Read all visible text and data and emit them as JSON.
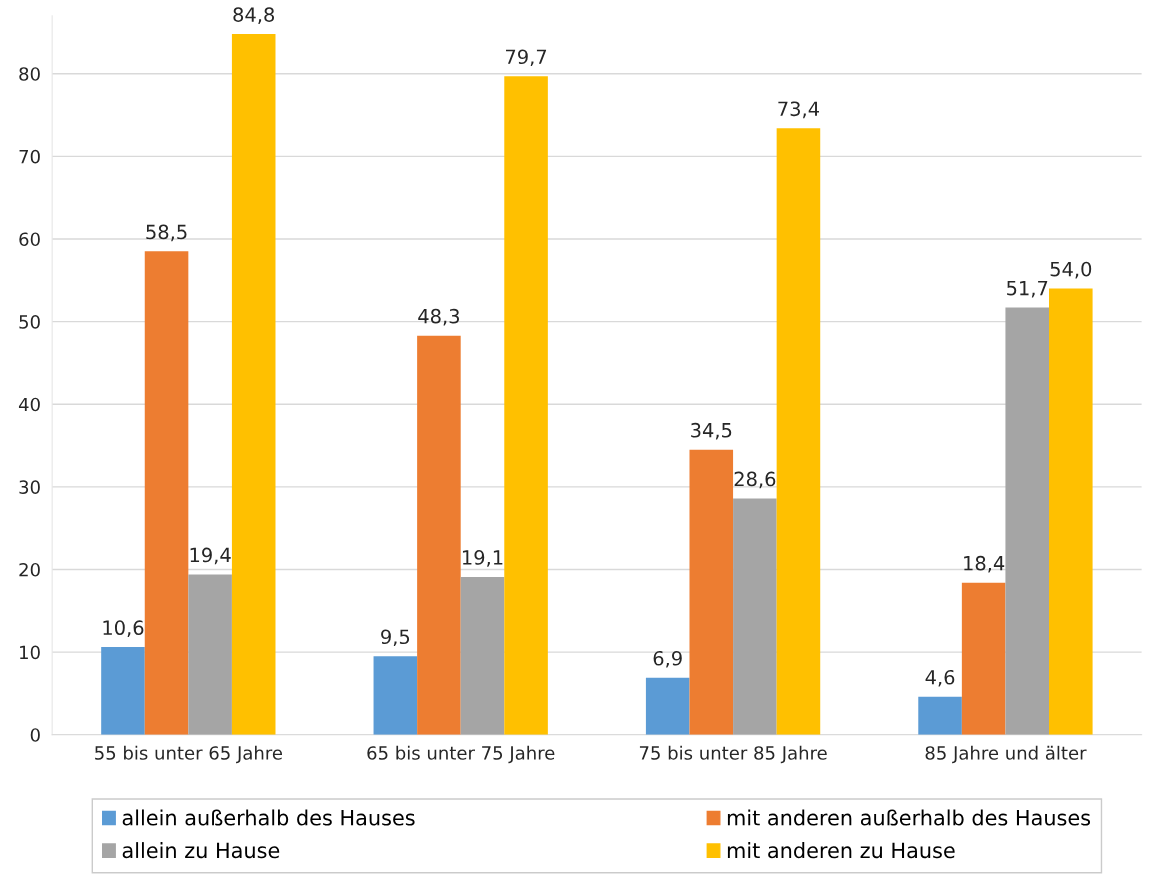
{
  "chart_data": {
    "type": "bar",
    "categories": [
      "55 bis unter 65 Jahre",
      "65 bis unter 75 Jahre",
      "75 bis unter 85 Jahre",
      "85 Jahre und älter"
    ],
    "series": [
      {
        "name": "allein außerhalb des Hauses",
        "color": "#5b9bd5",
        "values": [
          10.6,
          9.5,
          6.9,
          4.6
        ],
        "value_labels": [
          "10,6",
          "9,5",
          "6,9",
          "4,6"
        ]
      },
      {
        "name": "mit anderen außerhalb des Hauses",
        "color": "#ed7d31",
        "values": [
          58.5,
          48.3,
          34.5,
          18.4
        ],
        "value_labels": [
          "58,5",
          "48,3",
          "34,5",
          "18,4"
        ]
      },
      {
        "name": "allein zu Hause",
        "color": "#a5a5a5",
        "values": [
          19.4,
          19.1,
          28.6,
          51.7
        ],
        "value_labels": [
          "19,4",
          "19,1",
          "28,6",
          "51,7"
        ]
      },
      {
        "name": "mit anderen zu Hause",
        "color": "#ffc000",
        "values": [
          84.8,
          79.7,
          73.4,
          54.0
        ],
        "value_labels": [
          "84,8",
          "79,7",
          "73,4",
          "54,0"
        ]
      }
    ],
    "ylim": [
      0,
      87
    ],
    "yticks": [
      0,
      10,
      20,
      30,
      40,
      50,
      60,
      70,
      80
    ],
    "grid": "y",
    "legend": "bottom"
  }
}
